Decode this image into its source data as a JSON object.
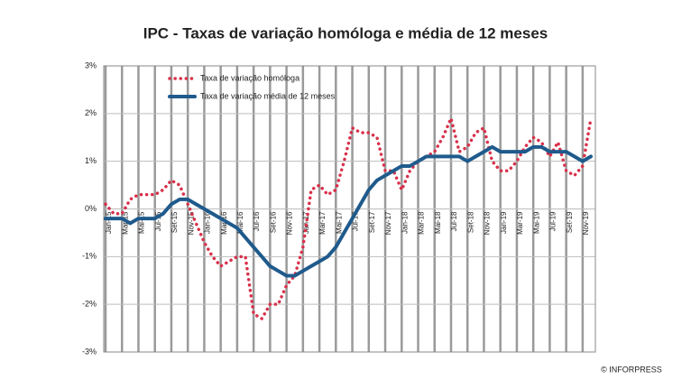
{
  "chart_data": {
    "type": "line",
    "title": "IPC - Taxas de variação homóloga e média de 12 meses",
    "categories": [
      "Jan-15",
      null,
      "Mar-15",
      null,
      "Mai-15",
      null,
      "Jul-15",
      null,
      "Set-15",
      null,
      "Nov-15",
      null,
      "Jan-16",
      null,
      "Mar-16",
      null,
      "Mai-16",
      null,
      "Jul-16",
      null,
      "Set-16",
      null,
      "Nov-16",
      null,
      "Jan-17",
      null,
      "Mar-17",
      null,
      "Mai-17",
      null,
      "Jul-17",
      null,
      "Set-17",
      null,
      "Nov-17",
      null,
      "Jan-18",
      null,
      "Mar-18",
      null,
      "Mai-18",
      null,
      "Jul-18",
      null,
      "Set-18",
      null,
      "Nov-18",
      null,
      "Jan-19",
      null,
      "Mar-19",
      null,
      "Mai-19",
      null,
      "Jul-19",
      null,
      "Set-19",
      null,
      "Nov-19",
      null
    ],
    "series": [
      {
        "name": "Taxa de variação homóloga",
        "color": "#d9304a",
        "style": "dotted",
        "values": [
          0.1,
          -0.1,
          -0.1,
          0.2,
          0.3,
          0.3,
          0.3,
          0.4,
          0.6,
          0.5,
          0.1,
          -0.3,
          -0.7,
          -1.0,
          -1.2,
          -1.1,
          -1.0,
          -1.0,
          -2.2,
          -2.3,
          -2.0,
          -2.0,
          -1.6,
          -1.4,
          -0.8,
          0.4,
          0.5,
          0.3,
          0.4,
          1.0,
          1.7,
          1.6,
          1.6,
          1.5,
          0.8,
          0.8,
          0.4,
          0.8,
          1.0,
          1.1,
          1.2,
          1.5,
          1.9,
          1.2,
          1.3,
          1.6,
          1.7,
          1.0,
          0.8,
          0.8,
          1.0,
          1.3,
          1.5,
          1.4,
          1.1,
          1.4,
          0.8,
          0.7,
          0.9,
          1.9
        ]
      },
      {
        "name": "Taxa de variação média de 12 meses",
        "color": "#1f5a8c",
        "style": "solid",
        "values": [
          -0.2,
          -0.2,
          -0.2,
          -0.3,
          -0.2,
          -0.2,
          -0.2,
          -0.1,
          0.1,
          0.2,
          0.2,
          0.1,
          0.0,
          -0.1,
          -0.2,
          -0.3,
          -0.4,
          -0.6,
          -0.8,
          -1.0,
          -1.2,
          -1.3,
          -1.4,
          -1.4,
          -1.3,
          -1.2,
          -1.1,
          -1.0,
          -0.8,
          -0.5,
          -0.2,
          0.1,
          0.4,
          0.6,
          0.7,
          0.8,
          0.9,
          0.9,
          1.0,
          1.1,
          1.1,
          1.1,
          1.1,
          1.1,
          1.0,
          1.1,
          1.2,
          1.3,
          1.2,
          1.2,
          1.2,
          1.2,
          1.3,
          1.3,
          1.2,
          1.2,
          1.2,
          1.1,
          1.0,
          1.1
        ]
      }
    ],
    "ylim": [
      -3,
      3
    ],
    "yticks": [
      {
        "value": -3,
        "label": "-3%"
      },
      {
        "value": -2,
        "label": "-2%"
      },
      {
        "value": -1,
        "label": "-1%"
      },
      {
        "value": 0,
        "label": "0%"
      },
      {
        "value": 1,
        "label": "1%"
      },
      {
        "value": 2,
        "label": "2%"
      },
      {
        "value": 3,
        "label": "3%"
      }
    ],
    "grid": true,
    "legend": "top-left",
    "source": "© INFORPRESS"
  }
}
